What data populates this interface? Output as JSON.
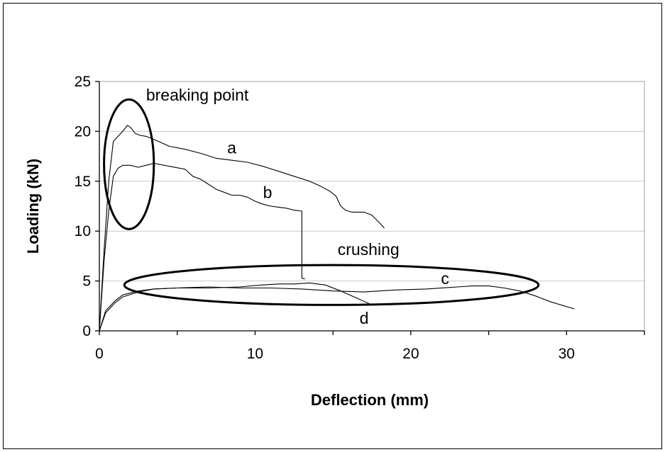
{
  "chart_data": {
    "type": "line",
    "title": "",
    "xlabel": "Deflection (mm)",
    "ylabel": "Loading (kN)",
    "xlim": [
      0,
      35
    ],
    "ylim": [
      0,
      25
    ],
    "x_ticks": [
      "0",
      "10",
      "20",
      "30"
    ],
    "x_tick_values": [
      0,
      10,
      20,
      30
    ],
    "y_ticks": [
      "0",
      "5",
      "10",
      "15",
      "20",
      "25"
    ],
    "y_tick_values": [
      0,
      5,
      10,
      15,
      20,
      25
    ],
    "grid": "horizontal",
    "series": [
      {
        "name": "a",
        "x": [
          0,
          0.3,
          0.6,
          0.9,
          1.2,
          1.5,
          1.8,
          2.0,
          2.3,
          2.6,
          3.0,
          3.5,
          4.5,
          5.5,
          6.5,
          7.5,
          8.5,
          9.5,
          10.5,
          11.5,
          12.5,
          13.5,
          14.2,
          14.8,
          15.2,
          15.5,
          15.8,
          16.2,
          17.0,
          17.5,
          18.0,
          18.3
        ],
        "y": [
          0,
          8,
          15,
          19,
          19.5,
          20,
          20.6,
          20.4,
          19.8,
          19.6,
          19.5,
          19.2,
          18.5,
          18.2,
          17.8,
          17.3,
          17.1,
          16.9,
          16.5,
          16.0,
          15.5,
          15.0,
          14.5,
          14.0,
          13.5,
          12.5,
          12.1,
          11.9,
          11.9,
          11.6,
          10.8,
          10.3
        ]
      },
      {
        "name": "b",
        "x": [
          0,
          0.3,
          0.6,
          0.9,
          1.2,
          1.5,
          2.0,
          2.5,
          3.0,
          3.5,
          4.5,
          5.5,
          6.0,
          6.5,
          7.0,
          7.5,
          8.0,
          8.5,
          9.0,
          9.5,
          10.0,
          10.5,
          11.0,
          11.5,
          12.0,
          12.5,
          13.0,
          13.0,
          13.2
        ],
        "y": [
          0,
          7,
          12,
          15.5,
          16.3,
          16.6,
          16.6,
          16.4,
          16.6,
          16.8,
          16.5,
          16.2,
          15.5,
          15.2,
          14.7,
          14.2,
          13.9,
          13.6,
          13.6,
          13.4,
          13.0,
          12.7,
          12.5,
          12.4,
          12.3,
          12.1,
          12.0,
          5.3,
          5.2
        ]
      },
      {
        "name": "c",
        "x": [
          0,
          0.4,
          1.0,
          1.5,
          2.5,
          3.5,
          5.0,
          7.0,
          9.0,
          11.0,
          13.0,
          15.0,
          17.0,
          19.0,
          21.0,
          23.0,
          24.0,
          25.0,
          26.0,
          27.0,
          28.0,
          29.0,
          30.5
        ],
        "y": [
          0,
          2.0,
          3.0,
          3.6,
          4.0,
          4.2,
          4.3,
          4.4,
          4.3,
          4.3,
          4.2,
          4.0,
          3.9,
          4.1,
          4.2,
          4.4,
          4.5,
          4.5,
          4.3,
          4.0,
          3.5,
          2.9,
          2.2
        ]
      },
      {
        "name": "d",
        "x": [
          0,
          0.4,
          1.0,
          1.5,
          2.5,
          3.5,
          5.0,
          7.0,
          9.0,
          10.5,
          11.5,
          12.5,
          13.5,
          14.5,
          15.5,
          16.5,
          17.5
        ],
        "y": [
          0,
          1.8,
          2.8,
          3.4,
          3.9,
          4.2,
          4.3,
          4.3,
          4.4,
          4.6,
          4.7,
          4.7,
          4.8,
          4.6,
          4.0,
          3.3,
          2.6
        ]
      }
    ],
    "series_labels": [
      {
        "text": "a",
        "x": 8.5,
        "y": 17.8
      },
      {
        "text": "b",
        "x": 10.8,
        "y": 13.3
      },
      {
        "text": "c",
        "x": 22.2,
        "y": 4.7
      },
      {
        "text": "d",
        "x": 17.0,
        "y": 0.7
      }
    ],
    "annotations": [
      {
        "text": "breaking point",
        "x": 3.0,
        "y": 23.1,
        "shape": "ellipse",
        "cx": 1.9,
        "cy": 16.7,
        "rx": 1.6,
        "ry": 6.5
      },
      {
        "text": "crushing",
        "x": 15.3,
        "y": 7.6,
        "shape": "ellipse",
        "cx": 14.9,
        "cy": 4.6,
        "rx": 13.3,
        "ry": 2.0
      }
    ]
  }
}
